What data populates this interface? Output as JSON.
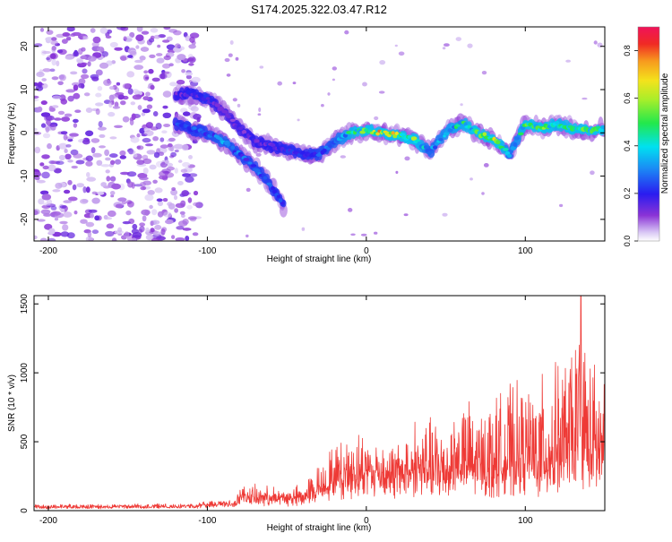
{
  "figure": {
    "title": "S174.2025.322.03.47.R12"
  },
  "chart_data": [
    {
      "type": "heatmap",
      "name": "spectrogram",
      "xlabel": "Height of straight line (km)",
      "ylabel": "Frequency (Hz)",
      "xlim": [
        -209,
        150
      ],
      "ylim": [
        -25,
        24.5
      ],
      "x_ticks": [
        -200,
        -100,
        0,
        100
      ],
      "x_tick_labels": [
        "-200",
        "-100",
        "0",
        "100"
      ],
      "y_ticks": [
        -20,
        -10,
        0,
        10,
        20
      ],
      "y_tick_labels": [
        "-20",
        "-10",
        "0",
        "10",
        "20"
      ],
      "colorbar": {
        "label": "Normalized spectral amplitude",
        "range": [
          0,
          0.9
        ],
        "ticks": [
          0.0,
          0.2,
          0.4,
          0.6,
          0.8
        ],
        "tick_labels": [
          "0.0",
          "0.2",
          "0.4",
          "0.6",
          "0.8"
        ]
      },
      "noise_region": {
        "x": [
          -209,
          -105
        ],
        "y": [
          -25,
          24.5
        ],
        "level": 0.12
      },
      "ridge": [
        {
          "x": -120,
          "f": 9,
          "a": 0.2
        },
        {
          "x": -110,
          "f": 9,
          "a": 0.22
        },
        {
          "x": -100,
          "f": 8,
          "a": 0.25
        },
        {
          "x": -90,
          "f": 5,
          "a": 0.15
        },
        {
          "x": -80,
          "f": 1,
          "a": 0.18
        },
        {
          "x": -70,
          "f": -2,
          "a": 0.2
        },
        {
          "x": -60,
          "f": -3,
          "a": 0.22
        },
        {
          "x": -50,
          "f": -4,
          "a": 0.25
        },
        {
          "x": -40,
          "f": -5,
          "a": 0.25
        },
        {
          "x": -30,
          "f": -5,
          "a": 0.3
        },
        {
          "x": -20,
          "f": -2,
          "a": 0.35
        },
        {
          "x": -10,
          "f": 0,
          "a": 0.5
        },
        {
          "x": 0,
          "f": 0.5,
          "a": 0.6
        },
        {
          "x": 10,
          "f": 0,
          "a": 0.8
        },
        {
          "x": 20,
          "f": -0.5,
          "a": 0.75
        },
        {
          "x": 30,
          "f": -1.5,
          "a": 0.6
        },
        {
          "x": 40,
          "f": -4.5,
          "a": 0.35
        },
        {
          "x": 50,
          "f": 0,
          "a": 0.45
        },
        {
          "x": 60,
          "f": 2.5,
          "a": 0.5
        },
        {
          "x": 70,
          "f": 0,
          "a": 0.55
        },
        {
          "x": 80,
          "f": -1.5,
          "a": 0.75
        },
        {
          "x": 90,
          "f": -5,
          "a": 0.35
        },
        {
          "x": 100,
          "f": 2,
          "a": 0.55
        },
        {
          "x": 110,
          "f": 1,
          "a": 0.6
        },
        {
          "x": 120,
          "f": 2,
          "a": 0.5
        },
        {
          "x": 130,
          "f": 1,
          "a": 0.55
        },
        {
          "x": 140,
          "f": 0.5,
          "a": 0.6
        },
        {
          "x": 150,
          "f": 1,
          "a": 0.55
        }
      ],
      "branch": [
        {
          "x": -120,
          "f": 2,
          "a": 0.25
        },
        {
          "x": -100,
          "f": 0,
          "a": 0.3
        },
        {
          "x": -90,
          "f": -2,
          "a": 0.35
        },
        {
          "x": -80,
          "f": -5,
          "a": 0.3
        },
        {
          "x": -70,
          "f": -8,
          "a": 0.3
        },
        {
          "x": -60,
          "f": -12,
          "a": 0.28
        },
        {
          "x": -52,
          "f": -17,
          "a": 0.25
        }
      ]
    },
    {
      "type": "line",
      "name": "snr",
      "xlabel": "Height of straight line (km)",
      "ylabel": "SNR (10 * v/v)",
      "xlim": [
        -209,
        150
      ],
      "ylim": [
        0,
        1560
      ],
      "x_ticks": [
        -200,
        -100,
        0,
        100
      ],
      "x_tick_labels": [
        "-200",
        "-100",
        "0",
        "100"
      ],
      "y_ticks": [
        0,
        500,
        1000,
        1500
      ],
      "y_tick_labels": [
        "0",
        "500",
        "1000",
        "1500"
      ],
      "series": [
        {
          "name": "SNR",
          "color": "#ee3a36",
          "envelope": [
            {
              "x": -209,
              "base": 30,
              "amp": 25
            },
            {
              "x": -110,
              "base": 35,
              "amp": 25
            },
            {
              "x": -100,
              "base": 45,
              "amp": 30
            },
            {
              "x": -82,
              "base": 60,
              "amp": 60
            },
            {
              "x": -80,
              "base": 90,
              "amp": 90
            },
            {
              "x": -50,
              "base": 80,
              "amp": 80
            },
            {
              "x": -40,
              "base": 90,
              "amp": 90
            },
            {
              "x": -30,
              "base": 140,
              "amp": 200
            },
            {
              "x": -20,
              "base": 200,
              "amp": 280
            },
            {
              "x": -10,
              "base": 230,
              "amp": 300
            },
            {
              "x": 0,
              "base": 260,
              "amp": 300
            },
            {
              "x": 10,
              "base": 240,
              "amp": 260
            },
            {
              "x": 20,
              "base": 230,
              "amp": 250
            },
            {
              "x": 30,
              "base": 250,
              "amp": 420
            },
            {
              "x": 40,
              "base": 230,
              "amp": 430
            },
            {
              "x": 50,
              "base": 240,
              "amp": 420
            },
            {
              "x": 60,
              "base": 260,
              "amp": 560
            },
            {
              "x": 70,
              "base": 240,
              "amp": 500
            },
            {
              "x": 80,
              "base": 250,
              "amp": 560
            },
            {
              "x": 90,
              "base": 260,
              "amp": 640
            },
            {
              "x": 100,
              "base": 270,
              "amp": 620
            },
            {
              "x": 110,
              "base": 280,
              "amp": 680
            },
            {
              "x": 120,
              "base": 300,
              "amp": 750
            },
            {
              "x": 130,
              "base": 320,
              "amp": 850
            },
            {
              "x": 135,
              "base": 330,
              "amp": 1230
            },
            {
              "x": 140,
              "base": 320,
              "amp": 800
            },
            {
              "x": 150,
              "base": 330,
              "amp": 650
            }
          ],
          "peak": {
            "x": 135,
            "y": 1560
          }
        }
      ]
    }
  ]
}
